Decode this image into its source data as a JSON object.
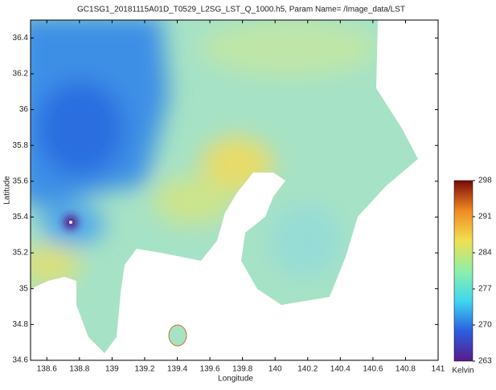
{
  "chart_data": {
    "type": "heatmap",
    "title": "GC1SG1_20181115A01D_T0529_L2SG_LST_Q_1000.h5, Param Name= /Image_data/LST",
    "xlabel": "Longitude",
    "ylabel": "Latitude",
    "xlim": [
      138.5,
      141
    ],
    "xticks": [
      138.6,
      138.8,
      139,
      139.2,
      139.4,
      139.6,
      139.8,
      140,
      140.2,
      140.4,
      140.6,
      140.8,
      141
    ],
    "ylim": [
      34.6,
      36.5
    ],
    "yticks": [
      34.6,
      34.8,
      35,
      35.2,
      35.4,
      35.6,
      35.8,
      36,
      36.2,
      36.4
    ],
    "colorbar": {
      "label": "Kelvin",
      "lim": [
        263,
        298
      ],
      "ticks": [
        263,
        270,
        277,
        284,
        291,
        298
      ],
      "colors": [
        "#5a1a8a",
        "#2a5fe0",
        "#3fd8f0",
        "#8ef0a8",
        "#f0e050",
        "#f08a20",
        "#7a0a0a"
      ]
    }
  }
}
